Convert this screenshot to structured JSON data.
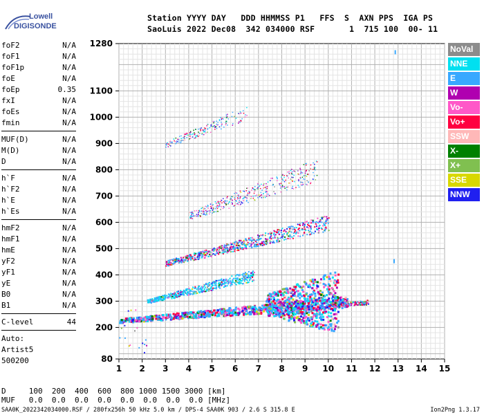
{
  "header": {
    "line1": "Station YYYY DAY   DDD HHMMSS P1   FFS  S  AXN PPS  IGA PS",
    "line2": "SaoLuis 2022 Dec08  342 034000 RSF       1  715 100  00- 11"
  },
  "logo": {
    "brand1": "Lowell",
    "brand2": "DIGISONDE"
  },
  "params_group1": [
    {
      "name": "foF2",
      "value": "N/A"
    },
    {
      "name": "foF1",
      "value": "N/A"
    },
    {
      "name": "foF1p",
      "value": "N/A"
    },
    {
      "name": "foE",
      "value": "N/A"
    },
    {
      "name": "foEp",
      "value": "0.35"
    },
    {
      "name": "fxI",
      "value": "N/A"
    },
    {
      "name": "foEs",
      "value": "N/A"
    },
    {
      "name": "fmin",
      "value": "N/A"
    }
  ],
  "params_group2": [
    {
      "name": "MUF(D)",
      "value": "N/A"
    },
    {
      "name": "M(D)",
      "value": "N/A"
    },
    {
      "name": "D",
      "value": "N/A"
    }
  ],
  "params_group3": [
    {
      "name": "h`F",
      "value": "N/A"
    },
    {
      "name": "h`F2",
      "value": "N/A"
    },
    {
      "name": "h`E",
      "value": "N/A"
    },
    {
      "name": "h`Es",
      "value": "N/A"
    }
  ],
  "params_group4": [
    {
      "name": "hmF2",
      "value": "N/A"
    },
    {
      "name": "hmF1",
      "value": "N/A"
    },
    {
      "name": "hmE",
      "value": "N/A"
    },
    {
      "name": "yF2",
      "value": "N/A"
    },
    {
      "name": "yF1",
      "value": "N/A"
    },
    {
      "name": "yE",
      "value": "N/A"
    },
    {
      "name": "B0",
      "value": "N/A"
    },
    {
      "name": "B1",
      "value": "N/A"
    }
  ],
  "clevel": {
    "name": "C-level",
    "value": "44"
  },
  "auto_notes": [
    "Auto:",
    "Artist5",
    "500200"
  ],
  "legend": [
    {
      "label": "NoVal",
      "color": "#8c8c8c"
    },
    {
      "label": "NNE",
      "color": "#00e0f0"
    },
    {
      "label": "E",
      "color": "#38a8ff"
    },
    {
      "label": "W",
      "color": "#b000b0"
    },
    {
      "label": "Vo-",
      "color": "#ff58c8"
    },
    {
      "label": "Vo+",
      "color": "#ff0040"
    },
    {
      "label": "SSW",
      "color": "#ffb8b8"
    },
    {
      "label": "X-",
      "color": "#008000"
    },
    {
      "label": "X+",
      "color": "#80c050"
    },
    {
      "label": "SSE",
      "color": "#d8d800"
    },
    {
      "label": "NNW",
      "color": "#2020f0"
    }
  ],
  "bottom": {
    "d_line": "D     100  200  400  600  800 1000 1500 3000 [km]",
    "muf_line": "MUF   0.0  0.0  0.0  0.0  0.0  0.0  0.0  0.0 [MHz]"
  },
  "footer": {
    "left": "SAA0K_2022342034000.RSF / 280fx256h 50 kHz 5.0 km / DPS-4 SAA0K 903 / 2.6 S 315.8 E",
    "right": "Ion2Png 1.3.17"
  },
  "chart_data": {
    "type": "scatter",
    "xlim": [
      1,
      15
    ],
    "ylim": [
      80,
      1280
    ],
    "x_ticks": [
      1,
      2,
      3,
      4,
      5,
      6,
      7,
      8,
      9,
      10,
      11,
      12,
      13,
      14,
      15
    ],
    "y_ticks": [
      80,
      200,
      300,
      400,
      500,
      600,
      700,
      800,
      900,
      1000,
      1100,
      1280
    ],
    "grid": true,
    "legend_placement": "right",
    "traces": [
      {
        "name": "E",
        "start": [
          1.5,
          225
        ],
        "end": [
          10.8,
          300
        ],
        "mode": "o"
      },
      {
        "name": "E",
        "start": [
          2.2,
          300
        ],
        "end": [
          6.8,
          400
        ],
        "mode": "o"
      },
      {
        "name": "E",
        "start": [
          1.0,
          225
        ],
        "end": [
          10.8,
          300
        ],
        "mode": "o"
      },
      {
        "name": "E",
        "start": [
          3.0,
          440
        ],
        "end": [
          10.0,
          600
        ],
        "mode": "x2"
      },
      {
        "name": "E",
        "start": [
          4.0,
          620
        ],
        "end": [
          9.5,
          800
        ],
        "mode": "x3"
      },
      {
        "name": "E",
        "start": [
          3.0,
          900
        ],
        "end": [
          6.5,
          1020
        ],
        "mode": "x4"
      }
    ],
    "isolated_points": [
      {
        "x": 12.85,
        "y": 1255,
        "series": "E"
      },
      {
        "x": 12.8,
        "y": 460,
        "series": "E"
      }
    ]
  }
}
